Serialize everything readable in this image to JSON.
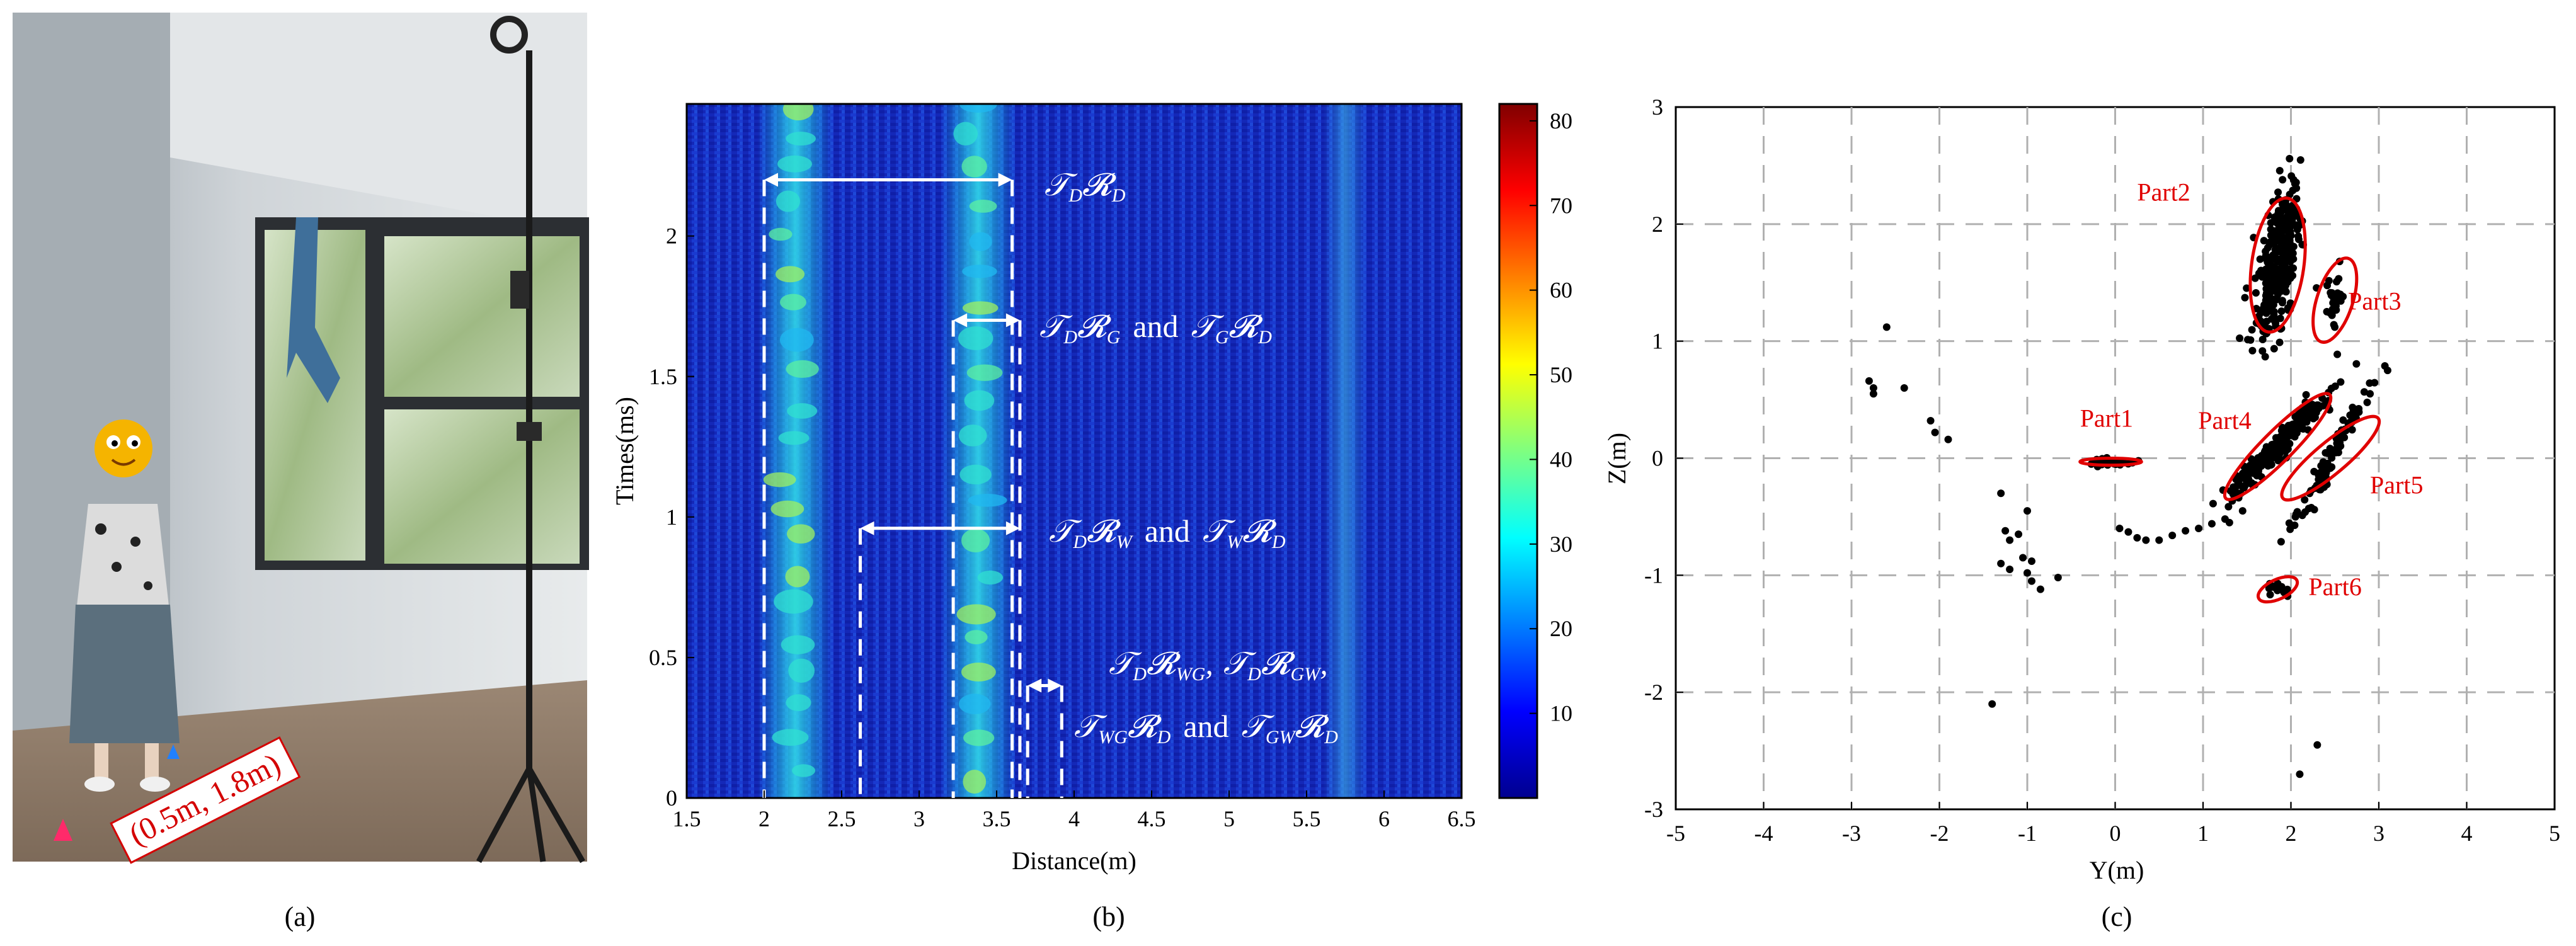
{
  "figure": {
    "panels": [
      {
        "label": "(a)",
        "description_text": "(0.5m, 1.8m)"
      },
      {
        "label": "(b)"
      },
      {
        "label": "(c)"
      }
    ]
  },
  "colors": {
    "heatmap_low": "#0a1aa0",
    "heatmap_mid": "#18c8e0",
    "heatmap_high": "#8a0000",
    "ellipse": "#e00000",
    "points": "#000000",
    "annotation": "#ffffff",
    "photo_label": "#d40000"
  },
  "chart_data": [
    {
      "type": "heatmap",
      "title": "",
      "xlabel": "Distance(m)",
      "ylabel": "Times(ms)",
      "xlim": [
        1.5,
        6.5
      ],
      "ylim": [
        0,
        2.47
      ],
      "xticks": [
        1.5,
        2,
        2.5,
        3,
        3.5,
        4,
        4.5,
        5,
        5.5,
        6,
        6.5
      ],
      "xtick_labels": [
        "1.5",
        "2",
        "2.5",
        "3",
        "3.5",
        "4",
        "4.5",
        "5",
        "5.5",
        "6",
        "6.5"
      ],
      "yticks": [
        0,
        0.5,
        1,
        1.5,
        2
      ],
      "ytick_labels": [
        "0",
        "0.5",
        "1",
        "1.5",
        "2"
      ],
      "colorbar": {
        "range": [
          0,
          82
        ],
        "ticks": [
          10,
          20,
          30,
          40,
          50,
          60,
          70,
          80
        ],
        "tick_labels": [
          "10",
          "20",
          "30",
          "40",
          "50",
          "60",
          "70",
          "80"
        ]
      },
      "bright_bands": [
        {
          "distance": 2.2,
          "intensity": 35
        },
        {
          "distance": 3.38,
          "intensity": 42
        },
        {
          "distance": 5.75,
          "intensity": 18
        }
      ],
      "dashed_lines_distance": [
        2.0,
        2.62,
        3.22,
        3.6,
        3.65,
        3.7,
        3.92
      ],
      "annotations": [
        {
          "text": "𝒯D𝓡D",
          "main1": "𝒯",
          "sub1": "D",
          "main2": "𝓡",
          "sub2": "D",
          "arrow_from": 2.0,
          "arrow_to": 3.6,
          "time": 2.2
        },
        {
          "text": "𝒯D𝓡G and 𝒯G𝓡D",
          "main1": "𝒯",
          "sub1": "D",
          "main2": "𝓡",
          "sub2": "G",
          "and": "and",
          "main3": "𝒯",
          "sub3": "G",
          "main4": "𝓡",
          "sub4": "D",
          "arrow_from": 3.22,
          "arrow_to": 3.65,
          "time": 1.7
        },
        {
          "text": "𝒯D𝓡W and 𝒯W𝓡D",
          "main1": "𝒯",
          "sub1": "D",
          "main2": "𝓡",
          "sub2": "W",
          "and": "and",
          "main3": "𝒯",
          "sub3": "W",
          "main4": "𝓡",
          "sub4": "D",
          "arrow_from": 2.62,
          "arrow_to": 3.65,
          "time": 0.96
        },
        {
          "text": "𝒯D𝓡WG, 𝒯D𝓡GW,",
          "main1": "𝒯",
          "sub1": "D",
          "main2": "𝓡",
          "sub2": "WG",
          "comma": ",",
          "main3": "𝒯",
          "sub3": "D",
          "main4": "𝓡",
          "sub4": "GW",
          "arrow_from": 3.7,
          "arrow_to": 3.92,
          "time": 0.4
        },
        {
          "text": "𝒯WG𝓡D and 𝒯GW𝓡D",
          "main1": "𝒯",
          "sub1": "WG",
          "main2": "𝓡",
          "sub2": "D",
          "and": "and",
          "main3": "𝒯",
          "sub3": "GW",
          "main4": "𝓡",
          "sub4": "D",
          "time": 0.22
        }
      ]
    },
    {
      "type": "scatter",
      "title": "",
      "xlabel": "Y(m)",
      "ylabel": "Z(m)",
      "xlim": [
        -5,
        5
      ],
      "ylim": [
        -3,
        3
      ],
      "xticks": [
        -5,
        -4,
        -3,
        -2,
        -1,
        0,
        1,
        2,
        3,
        4,
        5
      ],
      "xtick_labels": [
        "-5",
        "-4",
        "-3",
        "-2",
        "-1",
        "0",
        "1",
        "2",
        "3",
        "4",
        "5"
      ],
      "yticks": [
        -3,
        -2,
        -1,
        0,
        1,
        2,
        3
      ],
      "ytick_labels": [
        "-3",
        "-2",
        "-1",
        "0",
        "1",
        "2",
        "3"
      ],
      "grid": true,
      "points": [
        [
          -2.6,
          1.12
        ],
        [
          -2.8,
          0.66
        ],
        [
          -2.75,
          0.6
        ],
        [
          -2.75,
          0.55
        ],
        [
          -2.4,
          0.6
        ],
        [
          -2.1,
          0.32
        ],
        [
          -2.05,
          0.22
        ],
        [
          -1.9,
          0.16
        ],
        [
          -1.3,
          -0.3
        ],
        [
          -1.25,
          -0.62
        ],
        [
          -1.2,
          -0.7
        ],
        [
          -1.1,
          -0.65
        ],
        [
          -1.05,
          -0.85
        ],
        [
          -0.95,
          -0.88
        ],
        [
          -1.3,
          -0.9
        ],
        [
          -1.2,
          -0.95
        ],
        [
          -1.0,
          -0.98
        ],
        [
          -0.95,
          -1.05
        ],
        [
          -0.85,
          -1.12
        ],
        [
          -0.65,
          -1.02
        ],
        [
          -1.0,
          -0.45
        ],
        [
          0.05,
          -0.6
        ],
        [
          0.15,
          -0.63
        ],
        [
          0.25,
          -0.68
        ],
        [
          0.35,
          -0.7
        ],
        [
          0.5,
          -0.7
        ],
        [
          0.65,
          -0.66
        ],
        [
          0.8,
          -0.62
        ],
        [
          0.95,
          -0.6
        ],
        [
          1.1,
          -0.56
        ],
        [
          1.25,
          -0.52
        ],
        [
          1.4,
          -0.3
        ],
        [
          1.5,
          -0.2
        ],
        [
          1.3,
          -0.55
        ],
        [
          1.45,
          -0.45
        ],
        [
          -1.4,
          -2.1
        ],
        [
          2.3,
          -2.45
        ],
        [
          2.1,
          -2.7
        ],
        [
          3.1,
          0.75
        ],
        [
          2.9,
          0.55
        ]
      ],
      "clusters": [
        {
          "name": "Part1",
          "center": [
            -0.05,
            -0.03
          ],
          "spread": [
            0.25,
            0.03
          ],
          "count": 40
        },
        {
          "name": "Part2",
          "center": [
            1.85,
            1.65
          ],
          "spread": [
            0.22,
            0.55
          ],
          "count": 320
        },
        {
          "name": "Part3",
          "center": [
            2.5,
            1.35
          ],
          "spread": [
            0.12,
            0.3
          ],
          "count": 30
        },
        {
          "name": "Part4",
          "center": [
            1.85,
            0.1
          ],
          "spread": [
            0.35,
            0.2
          ],
          "count": 260
        },
        {
          "name": "Part5",
          "center": [
            2.45,
            0.0
          ],
          "spread": [
            0.25,
            0.25
          ],
          "count": 90
        },
        {
          "name": "Part6",
          "center": [
            1.85,
            -1.12
          ],
          "spread": [
            0.15,
            0.06
          ],
          "count": 18
        }
      ],
      "annotations": [
        {
          "text": "Part1",
          "target": "Part1"
        },
        {
          "text": "Part2",
          "target": "Part2"
        },
        {
          "text": "Part3",
          "target": "Part3"
        },
        {
          "text": "Part4",
          "target": "Part4"
        },
        {
          "text": "Part5",
          "target": "Part5"
        },
        {
          "text": "Part6",
          "target": "Part6"
        }
      ]
    }
  ]
}
